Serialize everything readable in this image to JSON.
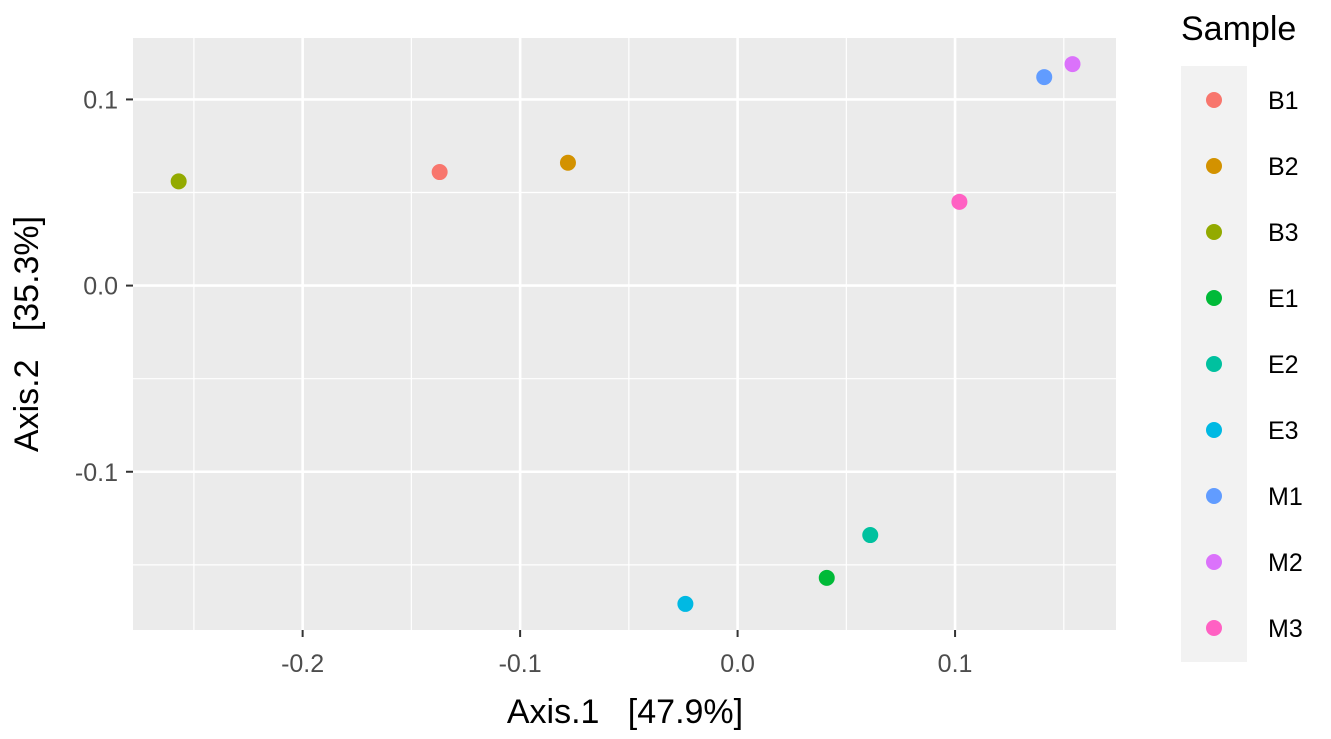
{
  "chart_data": {
    "type": "scatter",
    "xlabel": "Axis.1   [47.9%]",
    "ylabel": "Axis.2   [35.3%]",
    "xlim": [
      -0.278,
      0.174
    ],
    "ylim": [
      -0.185,
      0.133
    ],
    "x_ticks": [
      -0.2,
      -0.1,
      0.0,
      0.1
    ],
    "x_tick_labels": [
      "-0.2",
      "-0.1",
      "0.0",
      "0.1"
    ],
    "y_ticks": [
      -0.1,
      0.0,
      0.1
    ],
    "y_tick_labels": [
      "-0.1",
      "0.0",
      "0.1"
    ],
    "x_minor_ticks": [
      -0.25,
      -0.15,
      -0.05,
      0.05,
      0.15
    ],
    "y_minor_ticks": [
      -0.15,
      -0.05,
      0.05
    ],
    "grid": true,
    "panel_background": "#ebebeb",
    "legend": {
      "title": "Sample",
      "position": "right"
    },
    "series": [
      {
        "name": "B1",
        "color": "#F8766D",
        "x": -0.137,
        "y": 0.061
      },
      {
        "name": "B2",
        "color": "#D39200",
        "x": -0.078,
        "y": 0.066
      },
      {
        "name": "B3",
        "color": "#93AA00",
        "x": -0.257,
        "y": 0.056
      },
      {
        "name": "E1",
        "color": "#00BA38",
        "x": 0.041,
        "y": -0.157
      },
      {
        "name": "E2",
        "color": "#00C19F",
        "x": 0.061,
        "y": -0.134
      },
      {
        "name": "E3",
        "color": "#00B9E3",
        "x": -0.024,
        "y": -0.171
      },
      {
        "name": "M1",
        "color": "#619CFF",
        "x": 0.141,
        "y": 0.112
      },
      {
        "name": "M2",
        "color": "#DB72FB",
        "x": 0.154,
        "y": 0.119
      },
      {
        "name": "M3",
        "color": "#FF61C3",
        "x": 0.102,
        "y": 0.045
      }
    ]
  }
}
